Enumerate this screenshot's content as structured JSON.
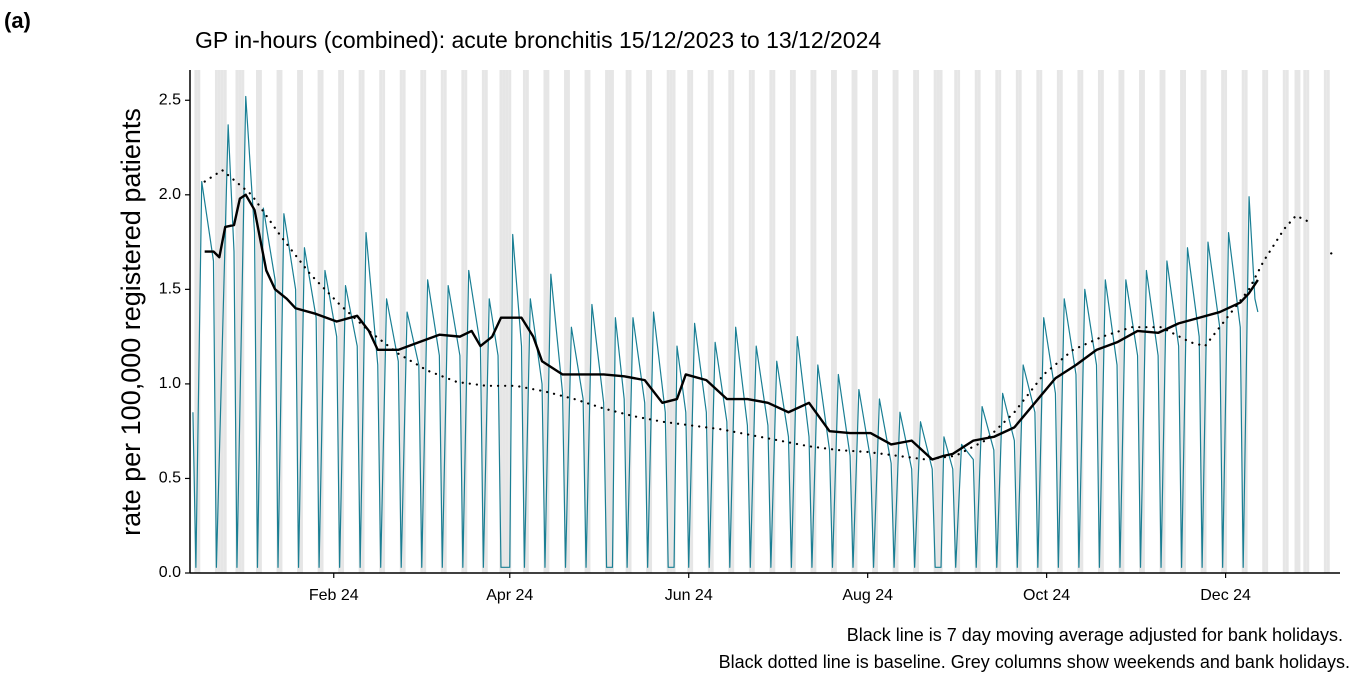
{
  "panel_label": "(a)",
  "chart_data": {
    "type": "line",
    "title": "GP in-hours (combined): acute bronchitis 15/12/2023 to 13/12/2024",
    "y_label": "rate per 100,000 registered patients",
    "notes": [
      "Black line is 7 day moving average adjusted for bank holidays.",
      "Black dotted line is baseline. Grey columns show weekends and bank holidays."
    ],
    "xlim": [
      -1,
      391
    ],
    "xticks": [
      {
        "value": 48,
        "label": "Feb 24"
      },
      {
        "value": 108,
        "label": "Apr 24"
      },
      {
        "value": 169,
        "label": "Jun 24"
      },
      {
        "value": 230,
        "label": "Aug 24"
      },
      {
        "value": 291,
        "label": "Oct 24"
      },
      {
        "value": 352,
        "label": "Dec 24"
      }
    ],
    "ylim": [
      0,
      2.66
    ],
    "yticks": [
      {
        "value": 0,
        "label": "0.0"
      },
      0.5,
      {
        "value": 1,
        "label": "1.0"
      },
      1.5,
      {
        "value": 2,
        "label": "2.0"
      },
      2.5
    ],
    "shaded_days": [
      1,
      2,
      8,
      9,
      15,
      16,
      22,
      23,
      29,
      30,
      36,
      37,
      43,
      44,
      50,
      51,
      57,
      58,
      64,
      65,
      71,
      72,
      78,
      79,
      85,
      86,
      92,
      93,
      99,
      100,
      106,
      107,
      113,
      114,
      120,
      121,
      127,
      128,
      134,
      135,
      141,
      142,
      148,
      149,
      155,
      156,
      162,
      163,
      169,
      170,
      176,
      177,
      183,
      184,
      190,
      191,
      197,
      198,
      204,
      205,
      211,
      212,
      218,
      219,
      225,
      226,
      232,
      233,
      239,
      240,
      246,
      247,
      253,
      254,
      260,
      261,
      267,
      268,
      274,
      275,
      281,
      282,
      288,
      289,
      295,
      296,
      302,
      303,
      309,
      310,
      316,
      317,
      323,
      324,
      330,
      331,
      337,
      338,
      344,
      345,
      351,
      352,
      358,
      359,
      365,
      366,
      372,
      373,
      379,
      380,
      386,
      387,
      10,
      11,
      17,
      105,
      108,
      143,
      164,
      255,
      376,
      377
    ],
    "shade_color": "#e6e6e6",
    "series": [
      {
        "color": "#1a7f94",
        "width": 1.2,
        "dash": false,
        "x": [
          0,
          1,
          3,
          7,
          8,
          12,
          14,
          15,
          18,
          21,
          22,
          24,
          28,
          29,
          31,
          35,
          36,
          38,
          42,
          43,
          45,
          49,
          50,
          52,
          56,
          57,
          59,
          63,
          64,
          66,
          70,
          71,
          73,
          77,
          78,
          80,
          84,
          85,
          87,
          91,
          92,
          94,
          98,
          99,
          101,
          104,
          105,
          108,
          109,
          112,
          113,
          115,
          119,
          120,
          122,
          126,
          127,
          129,
          133,
          134,
          136,
          140,
          141,
          143,
          144,
          147,
          148,
          150,
          154,
          155,
          157,
          161,
          162,
          164,
          165,
          168,
          169,
          171,
          175,
          176,
          178,
          182,
          183,
          185,
          189,
          190,
          192,
          196,
          197,
          199,
          203,
          204,
          206,
          210,
          211,
          213,
          217,
          218,
          220,
          224,
          225,
          227,
          231,
          232,
          234,
          238,
          239,
          241,
          245,
          246,
          248,
          252,
          253,
          255,
          256,
          259,
          260,
          262,
          266,
          267,
          269,
          273,
          274,
          276,
          280,
          281,
          283,
          287,
          288,
          290,
          294,
          295,
          297,
          301,
          302,
          304,
          308,
          309,
          311,
          315,
          316,
          318,
          322,
          323,
          325,
          329,
          330,
          332,
          336,
          337,
          339,
          343,
          344,
          346,
          350,
          351,
          353,
          357,
          358,
          360,
          362,
          363
        ],
        "values": [
          0.85,
          0.03,
          2.07,
          1.65,
          0.03,
          2.37,
          1.7,
          0.03,
          2.52,
          1.8,
          0.03,
          1.93,
          1.55,
          0.03,
          1.9,
          1.5,
          0.03,
          1.72,
          1.35,
          0.03,
          1.6,
          1.25,
          0.03,
          1.52,
          1.2,
          0.03,
          1.8,
          1.1,
          0.03,
          1.45,
          1.12,
          0.03,
          1.38,
          1.1,
          0.03,
          1.55,
          1.15,
          0.03,
          1.52,
          1.15,
          0.03,
          1.6,
          1.2,
          0.03,
          1.45,
          1.15,
          0.03,
          0.03,
          1.79,
          1.2,
          0.03,
          1.45,
          1.0,
          0.03,
          1.58,
          0.95,
          0.03,
          1.3,
          0.92,
          0.03,
          1.42,
          0.9,
          0.03,
          0.03,
          1.35,
          0.92,
          0.03,
          1.35,
          0.9,
          0.03,
          1.38,
          0.85,
          0.03,
          0.03,
          1.2,
          0.85,
          0.03,
          1.32,
          0.85,
          0.03,
          1.22,
          0.8,
          0.03,
          1.3,
          0.78,
          0.03,
          1.2,
          0.78,
          0.03,
          1.12,
          0.72,
          0.03,
          1.25,
          0.72,
          0.03,
          1.1,
          0.65,
          0.03,
          1.05,
          0.62,
          0.03,
          0.97,
          0.6,
          0.03,
          0.92,
          0.58,
          0.03,
          0.85,
          0.55,
          0.03,
          0.8,
          0.55,
          0.03,
          0.03,
          0.72,
          0.55,
          0.03,
          0.68,
          0.6,
          0.03,
          0.88,
          0.65,
          0.03,
          0.95,
          0.7,
          0.03,
          1.1,
          0.85,
          0.03,
          1.35,
          0.95,
          0.03,
          1.45,
          1.05,
          0.03,
          1.5,
          1.1,
          0.03,
          1.55,
          1.1,
          0.03,
          1.55,
          1.15,
          0.03,
          1.6,
          1.15,
          0.03,
          1.65,
          1.2,
          0.03,
          1.72,
          1.25,
          0.03,
          1.75,
          1.3,
          0.03,
          1.8,
          1.3,
          0.03,
          1.99,
          1.45,
          1.38
        ]
      },
      {
        "color": "#000000",
        "width": 2.4,
        "dash": false,
        "x": [
          4,
          7,
          9,
          11,
          14,
          16,
          18,
          21,
          25,
          28,
          32,
          35,
          42,
          49,
          56,
          60,
          63,
          70,
          77,
          84,
          91,
          95,
          98,
          102,
          105,
          112,
          116,
          119,
          126,
          133,
          140,
          147,
          154,
          160,
          165,
          168,
          175,
          182,
          189,
          196,
          203,
          210,
          217,
          224,
          231,
          238,
          245,
          252,
          256,
          259,
          266,
          273,
          280,
          287,
          294,
          301,
          308,
          315,
          322,
          329,
          336,
          343,
          350,
          357,
          360,
          363
        ],
        "values": [
          1.7,
          1.7,
          1.67,
          1.83,
          1.84,
          1.98,
          2.0,
          1.92,
          1.6,
          1.5,
          1.45,
          1.4,
          1.37,
          1.33,
          1.36,
          1.28,
          1.18,
          1.18,
          1.22,
          1.26,
          1.25,
          1.28,
          1.2,
          1.25,
          1.35,
          1.35,
          1.25,
          1.12,
          1.05,
          1.05,
          1.05,
          1.04,
          1.02,
          0.9,
          0.92,
          1.05,
          1.02,
          0.92,
          0.92,
          0.9,
          0.85,
          0.9,
          0.75,
          0.74,
          0.74,
          0.68,
          0.7,
          0.6,
          0.62,
          0.63,
          0.7,
          0.72,
          0.77,
          0.9,
          1.03,
          1.1,
          1.18,
          1.22,
          1.28,
          1.27,
          1.32,
          1.35,
          1.38,
          1.43,
          1.48,
          1.55
        ]
      },
      {
        "color": "#000000",
        "width": 2.2,
        "dash": true,
        "x": [
          4,
          10,
          20,
          30,
          40,
          50,
          60,
          70,
          80,
          90,
          100,
          110,
          120,
          130,
          140,
          150,
          160,
          170,
          180,
          190,
          200,
          210,
          220,
          230,
          240,
          250,
          260,
          270,
          280,
          290,
          300,
          310,
          320,
          330,
          340,
          345,
          350,
          360,
          365,
          372,
          376,
          380,
          383,
          388,
          389
        ],
        "values": [
          2.07,
          2.13,
          2.0,
          1.78,
          1.58,
          1.42,
          1.28,
          1.16,
          1.07,
          1.01,
          0.99,
          0.99,
          0.96,
          0.92,
          0.87,
          0.83,
          0.8,
          0.78,
          0.76,
          0.73,
          0.7,
          0.67,
          0.65,
          0.64,
          0.62,
          0.6,
          0.62,
          0.7,
          0.85,
          1.05,
          1.18,
          1.25,
          1.3,
          1.3,
          1.22,
          1.2,
          1.3,
          1.5,
          1.65,
          1.82,
          1.89,
          1.86,
          null,
          1.69,
          1.7
        ]
      }
    ]
  }
}
